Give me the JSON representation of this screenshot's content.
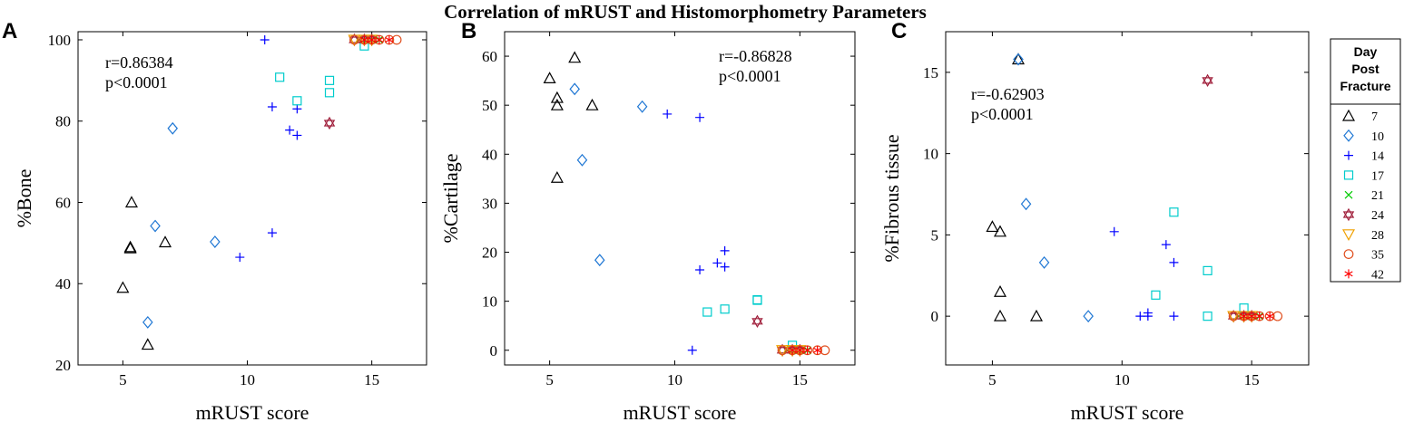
{
  "title": "Correlation of mRUST and Histomorphometry Parameters",
  "legend": {
    "title_lines": [
      "Day",
      "Post",
      "Fracture"
    ],
    "entries": [
      {
        "label": "7",
        "marker": "triangle-up-icon",
        "color": "#000000"
      },
      {
        "label": "10",
        "marker": "diamond-icon",
        "color": "#1f77d4"
      },
      {
        "label": "14",
        "marker": "plus-icon",
        "color": "#0000ff"
      },
      {
        "label": "17",
        "marker": "square-icon",
        "color": "#00cccc"
      },
      {
        "label": "21",
        "marker": "x-icon",
        "color": "#00cc00"
      },
      {
        "label": "24",
        "marker": "hexagram-icon",
        "color": "#a0203c"
      },
      {
        "label": "28",
        "marker": "triangle-down-icon",
        "color": "#f0a000"
      },
      {
        "label": "35",
        "marker": "circle-icon",
        "color": "#e05020"
      },
      {
        "label": "42",
        "marker": "asterisk-icon",
        "color": "#ff0000"
      }
    ]
  },
  "chart_data": [
    {
      "type": "scatter",
      "panel_label": "A",
      "xlabel": "mRUST score",
      "ylabel": "%Bone",
      "xlim": [
        3.2,
        17.2
      ],
      "ylim": [
        20,
        102
      ],
      "xticks": [
        5,
        10,
        15
      ],
      "yticks": [
        20,
        40,
        60,
        80,
        100
      ],
      "stats": [
        "r=0.86384",
        "p<0.0001"
      ],
      "series": [
        {
          "name": "7",
          "points": [
            [
              5,
              39
            ],
            [
              5.3,
              49
            ],
            [
              5.3,
              48.7
            ],
            [
              5.35,
              60
            ],
            [
              6,
              25
            ],
            [
              6.7,
              50.2
            ]
          ]
        },
        {
          "name": "10",
          "points": [
            [
              6,
              30.5
            ],
            [
              6.3,
              54.2
            ],
            [
              7,
              78.2
            ],
            [
              8.7,
              50.3
            ]
          ]
        },
        {
          "name": "14",
          "points": [
            [
              9.7,
              46.5
            ],
            [
              10.7,
              100
            ],
            [
              11,
              83.5
            ],
            [
              11,
              52.5
            ],
            [
              11.7,
              77.8
            ],
            [
              12,
              76.5
            ],
            [
              12,
              83
            ]
          ]
        },
        {
          "name": "17",
          "points": [
            [
              11.3,
              90.8
            ],
            [
              12,
              85
            ],
            [
              13.3,
              90
            ],
            [
              13.3,
              87
            ],
            [
              14.7,
              98.5
            ]
          ]
        },
        {
          "name": "21",
          "points": [
            [
              14.5,
              100
            ],
            [
              14.7,
              100
            ],
            [
              15,
              100
            ],
            [
              15.3,
              100
            ]
          ]
        },
        {
          "name": "24",
          "points": [
            [
              13.3,
              79.5
            ],
            [
              14.3,
              100
            ],
            [
              14.7,
              100
            ],
            [
              15,
              100
            ]
          ]
        },
        {
          "name": "28",
          "points": [
            [
              14.3,
              100
            ],
            [
              14.7,
              100
            ],
            [
              15,
              100
            ]
          ]
        },
        {
          "name": "35",
          "points": [
            [
              14.3,
              100
            ],
            [
              14.7,
              100
            ],
            [
              15,
              100
            ],
            [
              15.3,
              100
            ],
            [
              15.7,
              100
            ],
            [
              16,
              100
            ]
          ]
        },
        {
          "name": "42",
          "points": [
            [
              14.7,
              100
            ],
            [
              15,
              100
            ],
            [
              15.3,
              100
            ],
            [
              15.7,
              100
            ]
          ]
        }
      ]
    },
    {
      "type": "scatter",
      "panel_label": "B",
      "xlabel": "mRUST score",
      "ylabel": "%Cartilage",
      "xlim": [
        3.2,
        17.2
      ],
      "ylim": [
        -3,
        65
      ],
      "xticks": [
        5,
        10,
        15
      ],
      "yticks": [
        0,
        10,
        20,
        30,
        40,
        50,
        60
      ],
      "stats": [
        "r=-0.86828",
        "p<0.0001"
      ],
      "series": [
        {
          "name": "7",
          "points": [
            [
              5,
              55.5
            ],
            [
              5.3,
              51.5
            ],
            [
              5.3,
              50
            ],
            [
              5.3,
              35.2
            ],
            [
              6,
              59.7
            ],
            [
              6.7,
              50
            ]
          ]
        },
        {
          "name": "10",
          "points": [
            [
              6,
              53.3
            ],
            [
              6.3,
              38.8
            ],
            [
              7,
              18.4
            ],
            [
              8.7,
              49.7
            ]
          ]
        },
        {
          "name": "14",
          "points": [
            [
              9.7,
              48.2
            ],
            [
              10.7,
              0
            ],
            [
              11,
              47.5
            ],
            [
              11,
              16.4
            ],
            [
              11.7,
              17.8
            ],
            [
              12,
              20.3
            ],
            [
              12,
              17
            ]
          ]
        },
        {
          "name": "17",
          "points": [
            [
              11.3,
              7.8
            ],
            [
              12,
              8.4
            ],
            [
              13.3,
              10.3
            ],
            [
              13.3,
              10.2
            ],
            [
              14.7,
              1
            ]
          ]
        },
        {
          "name": "21",
          "points": [
            [
              14.5,
              0
            ],
            [
              14.7,
              0
            ],
            [
              15,
              0
            ],
            [
              15.3,
              0
            ]
          ]
        },
        {
          "name": "24",
          "points": [
            [
              13.3,
              5.9
            ],
            [
              14.3,
              0
            ],
            [
              14.7,
              0
            ],
            [
              15,
              0
            ]
          ]
        },
        {
          "name": "28",
          "points": [
            [
              14.3,
              0
            ],
            [
              14.7,
              0
            ],
            [
              15,
              0
            ]
          ]
        },
        {
          "name": "35",
          "points": [
            [
              14.3,
              0
            ],
            [
              14.7,
              0
            ],
            [
              15,
              0
            ],
            [
              15.3,
              0
            ],
            [
              15.7,
              0
            ],
            [
              16,
              0
            ]
          ]
        },
        {
          "name": "42",
          "points": [
            [
              14.7,
              0
            ],
            [
              15,
              0
            ],
            [
              15.3,
              0
            ],
            [
              15.7,
              0
            ]
          ]
        }
      ]
    },
    {
      "type": "scatter",
      "panel_label": "C",
      "xlabel": "mRUST score",
      "ylabel": "%Fibrous tissue",
      "xlim": [
        3.2,
        17.2
      ],
      "ylim": [
        -3,
        17.5
      ],
      "xticks": [
        5,
        10,
        15
      ],
      "yticks": [
        0,
        5,
        10,
        15
      ],
      "stats": [
        "r=-0.62903",
        "p<0.0001"
      ],
      "series": [
        {
          "name": "7",
          "points": [
            [
              5,
              5.5
            ],
            [
              5.3,
              5.2
            ],
            [
              5.3,
              1.5
            ],
            [
              5.3,
              0
            ],
            [
              6,
              15.8
            ],
            [
              6.7,
              0
            ]
          ]
        },
        {
          "name": "10",
          "points": [
            [
              6,
              15.8
            ],
            [
              6.3,
              6.9
            ],
            [
              7,
              3.3
            ],
            [
              8.7,
              0
            ]
          ]
        },
        {
          "name": "14",
          "points": [
            [
              9.7,
              5.2
            ],
            [
              10.7,
              0
            ],
            [
              11,
              0.2
            ],
            [
              11,
              0
            ],
            [
              11.7,
              4.4
            ],
            [
              12,
              3.3
            ],
            [
              12,
              0
            ]
          ]
        },
        {
          "name": "17",
          "points": [
            [
              11.3,
              1.3
            ],
            [
              12,
              6.4
            ],
            [
              13.3,
              2.8
            ],
            [
              13.3,
              0
            ],
            [
              14.7,
              0.5
            ]
          ]
        },
        {
          "name": "21",
          "points": [
            [
              14.5,
              0
            ],
            [
              14.7,
              0
            ],
            [
              15,
              0
            ],
            [
              15.3,
              0
            ]
          ]
        },
        {
          "name": "24",
          "points": [
            [
              13.3,
              14.5
            ],
            [
              14.3,
              0
            ],
            [
              14.7,
              0
            ],
            [
              15,
              0
            ]
          ]
        },
        {
          "name": "28",
          "points": [
            [
              14.3,
              0
            ],
            [
              14.7,
              0
            ],
            [
              15,
              0
            ]
          ]
        },
        {
          "name": "35",
          "points": [
            [
              14.3,
              0
            ],
            [
              14.7,
              0
            ],
            [
              15,
              0
            ],
            [
              15.3,
              0
            ],
            [
              15.7,
              0
            ],
            [
              16,
              0
            ]
          ]
        },
        {
          "name": "42",
          "points": [
            [
              14.7,
              0
            ],
            [
              15,
              0
            ],
            [
              15.3,
              0
            ],
            [
              15.7,
              0
            ]
          ]
        }
      ]
    }
  ]
}
